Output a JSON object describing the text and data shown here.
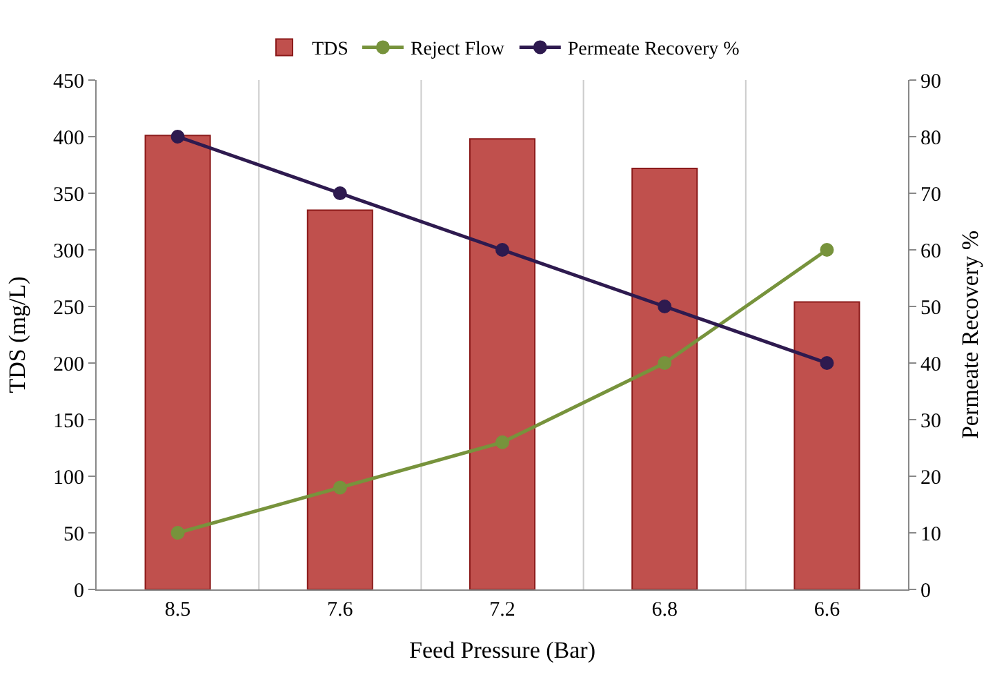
{
  "chart_data": {
    "type": "bar",
    "xlabel": "Feed Pressure (Bar)",
    "ylabel": "TDS (mg/L)",
    "y2label": "Permeate Recovery %",
    "categories": [
      "8.5",
      "7.6",
      "7.2",
      "6.8",
      "6.6"
    ],
    "series": [
      {
        "name": "TDS",
        "color": "#c0504d",
        "values": [
          401,
          335,
          398,
          372,
          254
        ]
      },
      {
        "name": "Reject Flow",
        "type": "line",
        "color": "#77933c",
        "values": [
          50,
          90,
          130,
          200,
          300
        ]
      },
      {
        "name": "Permeate Recovery %",
        "type": "line",
        "axis": "y2",
        "color": "#2e1a4f",
        "values": [
          80,
          70,
          60,
          50,
          40
        ]
      }
    ],
    "ylim": [
      0,
      450
    ],
    "yticks": [
      0,
      50,
      100,
      150,
      200,
      250,
      300,
      350,
      400,
      450
    ],
    "y2lim": [
      0,
      90
    ],
    "y2ticks": [
      0,
      10,
      20,
      30,
      40,
      50,
      60,
      70,
      80,
      90
    ],
    "grid": "x",
    "legend": "top",
    "marker": "circle"
  }
}
